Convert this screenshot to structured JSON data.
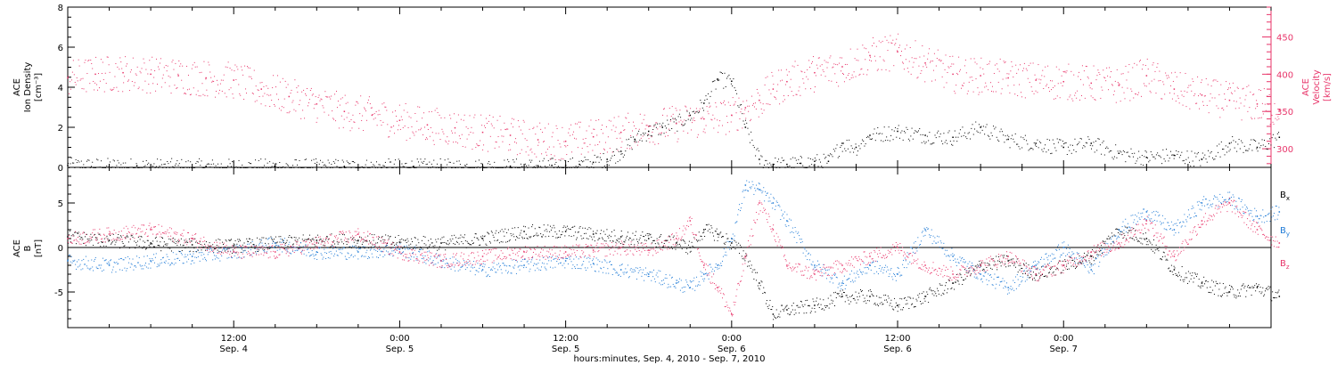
{
  "colors": {
    "black": "#000000",
    "pink": "#e8356a",
    "blue": "#1e7ad6",
    "axis": "#000000"
  },
  "chart_data": [
    {
      "type": "scatter",
      "panel": "top",
      "ylabel_left_lines": [
        "ACE",
        "Ion Density"
      ],
      "ylabel_left_unit": "[cm⁻³]",
      "ylabel_right_lines": [
        "ACE",
        "Velocity"
      ],
      "ylabel_right_unit": "[km/s]",
      "ylim_left": [
        0,
        8
      ],
      "yticks_left": [
        0,
        2,
        4,
        6,
        8
      ],
      "ylim_right": [
        275,
        490
      ],
      "yticks_right": [
        300,
        350,
        400,
        450
      ],
      "xlim_hours": [
        0,
        87
      ],
      "grid": false,
      "series": [
        {
          "axis": "left",
          "color": "pink_no",
          "name": "",
          "x": [
            0,
            5,
            10,
            15,
            20,
            25,
            30,
            32,
            34,
            35,
            36,
            37,
            38,
            39,
            40,
            41,
            42,
            43,
            44,
            45,
            46,
            47,
            48,
            49,
            50,
            51,
            52,
            53,
            54,
            55,
            56,
            57,
            58,
            60,
            62,
            64,
            66,
            68,
            70,
            72,
            74,
            76,
            78,
            80,
            82,
            84,
            86,
            87.6
          ],
          "values": [
            0.1,
            0.08,
            0.05,
            0.05,
            0.05,
            0.05,
            0.05,
            0.06,
            0.08,
            0.1,
            0.1,
            0.15,
            0.25,
            0.4,
            0.8,
            1.4,
            1.8,
            2.0,
            2.2,
            2.6,
            3.2,
            4.4,
            4.3,
            2.0,
            0.4,
            0.15,
            0.15,
            0.2,
            0.3,
            0.3,
            1.2,
            1.0,
            1.6,
            1.8,
            1.6,
            1.5,
            2.0,
            1.4,
            1.2,
            1.0,
            1.2,
            0.7,
            0.5,
            0.6,
            0.4,
            1.2,
            1.0,
            1.5
          ]
        },
        {
          "axis": "right",
          "color": "pink",
          "name": "",
          "x": [
            0,
            2,
            4,
            6,
            8,
            10,
            12,
            14,
            16,
            18,
            20,
            22,
            24,
            26,
            28,
            30,
            32,
            34,
            36,
            38,
            40,
            42,
            44,
            46,
            48,
            49,
            50,
            51,
            52,
            54,
            56,
            58,
            60,
            62,
            64,
            66,
            68,
            70,
            72,
            74,
            76,
            78,
            80,
            82,
            84,
            86,
            87.6
          ],
          "values": [
            395,
            400,
            402,
            400,
            398,
            395,
            392,
            380,
            370,
            360,
            350,
            345,
            338,
            332,
            328,
            322,
            318,
            312,
            310,
            316,
            322,
            330,
            334,
            340,
            345,
            355,
            365,
            380,
            390,
            402,
            410,
            425,
            430,
            415,
            400,
            398,
            395,
            392,
            390,
            388,
            385,
            398,
            380,
            372,
            365,
            360,
            352
          ]
        }
      ]
    },
    {
      "type": "scatter",
      "panel": "bottom",
      "ylabel_left_lines": [
        "ACE",
        "B"
      ],
      "ylabel_left_unit": "[nT]",
      "ylim": [
        -9,
        9
      ],
      "yticks": [
        -5,
        0,
        5
      ],
      "xlim_hours": [
        0,
        87
      ],
      "grid": false,
      "legend_placement": "right",
      "series": [
        {
          "name": "Bx",
          "legend_main": "B",
          "legend_sub": "x",
          "color": "black",
          "x": [
            0,
            3,
            6,
            9,
            12,
            15,
            18,
            21,
            24,
            27,
            30,
            33,
            36,
            38,
            40,
            42,
            44,
            45,
            46,
            47,
            48,
            49,
            50,
            51,
            52,
            54,
            56,
            58,
            60,
            62,
            64,
            66,
            68,
            70,
            72,
            74,
            76,
            78,
            80,
            82,
            84,
            86,
            87.6
          ],
          "values": [
            1.2,
            0.8,
            0.5,
            0.3,
            0.2,
            0.5,
            0.8,
            0.8,
            0.6,
            0.5,
            1.0,
            1.8,
            1.8,
            1.5,
            1.2,
            1.0,
            0.5,
            0.0,
            2.0,
            1.5,
            0.5,
            -1.0,
            -4.0,
            -7.5,
            -7.0,
            -6.5,
            -5.5,
            -5.5,
            -6.5,
            -5.5,
            -4.0,
            -2.0,
            -1.5,
            -3.0,
            -2.0,
            -1.0,
            2.0,
            1.0,
            -2.5,
            -4.0,
            -5.0,
            -4.5,
            -5.5
          ]
        },
        {
          "name": "By",
          "legend_main": "B",
          "legend_sub": "y",
          "color": "blue",
          "x": [
            0,
            3,
            6,
            9,
            12,
            15,
            18,
            21,
            24,
            27,
            30,
            33,
            36,
            38,
            40,
            42,
            44,
            45,
            46,
            47,
            48,
            49,
            50,
            51,
            52,
            54,
            56,
            58,
            60,
            62,
            64,
            66,
            68,
            70,
            72,
            74,
            76,
            78,
            80,
            82,
            84,
            86,
            87.6
          ],
          "values": [
            -1.5,
            -2.0,
            -1.5,
            -1.0,
            -0.5,
            0.5,
            -0.5,
            -0.5,
            -0.2,
            -1.5,
            -2.5,
            -2.0,
            -1.5,
            -1.8,
            -2.5,
            -3.0,
            -4.0,
            -4.5,
            -3.0,
            -2.0,
            1.0,
            7.0,
            6.5,
            5.0,
            3.0,
            -2.0,
            -4.0,
            -2.0,
            -3.0,
            2.0,
            -1.0,
            -3.0,
            -4.5,
            -2.0,
            0.0,
            -2.5,
            2.0,
            4.0,
            2.0,
            5.0,
            5.5,
            3.5,
            4.0
          ]
        },
        {
          "name": "Bz",
          "legend_main": "B",
          "legend_sub": "z",
          "color": "pink",
          "x": [
            0,
            3,
            6,
            9,
            12,
            15,
            18,
            21,
            24,
            27,
            30,
            33,
            36,
            38,
            40,
            42,
            44,
            45,
            46,
            47,
            48,
            49,
            50,
            51,
            52,
            54,
            56,
            58,
            60,
            62,
            64,
            66,
            68,
            70,
            72,
            74,
            76,
            78,
            80,
            82,
            84,
            86,
            87.6
          ],
          "values": [
            1.0,
            1.5,
            2.0,
            1.0,
            -0.5,
            -0.5,
            0.5,
            1.5,
            -0.5,
            -1.5,
            -1.0,
            -0.5,
            -0.5,
            -0.3,
            0.0,
            -0.3,
            1.0,
            3.0,
            -2.0,
            -4.5,
            -7.5,
            -1.0,
            5.0,
            2.0,
            -2.0,
            -3.0,
            -2.0,
            -1.0,
            0.0,
            -2.0,
            -3.0,
            -2.0,
            -1.0,
            -3.0,
            -2.0,
            -0.5,
            0.5,
            3.0,
            -1.0,
            3.0,
            5.0,
            2.0,
            0.5
          ]
        }
      ]
    }
  ],
  "x_axis": {
    "xlim_hours": [
      0,
      87
    ],
    "ticks": [
      {
        "hour": 12,
        "time": "12:00",
        "date": "Sep. 4"
      },
      {
        "hour": 24,
        "time": "0:00",
        "date": "Sep. 5"
      },
      {
        "hour": 36,
        "time": "12:00",
        "date": "Sep. 5"
      },
      {
        "hour": 48,
        "time": "0:00",
        "date": "Sep. 6"
      },
      {
        "hour": 60,
        "time": "12:00",
        "date": "Sep. 6"
      },
      {
        "hour": 72,
        "time": "0:00",
        "date": "Sep. 7"
      }
    ],
    "xlabel": "hours:minutes, Sep.  4, 2010 - Sep.  7, 2010"
  }
}
